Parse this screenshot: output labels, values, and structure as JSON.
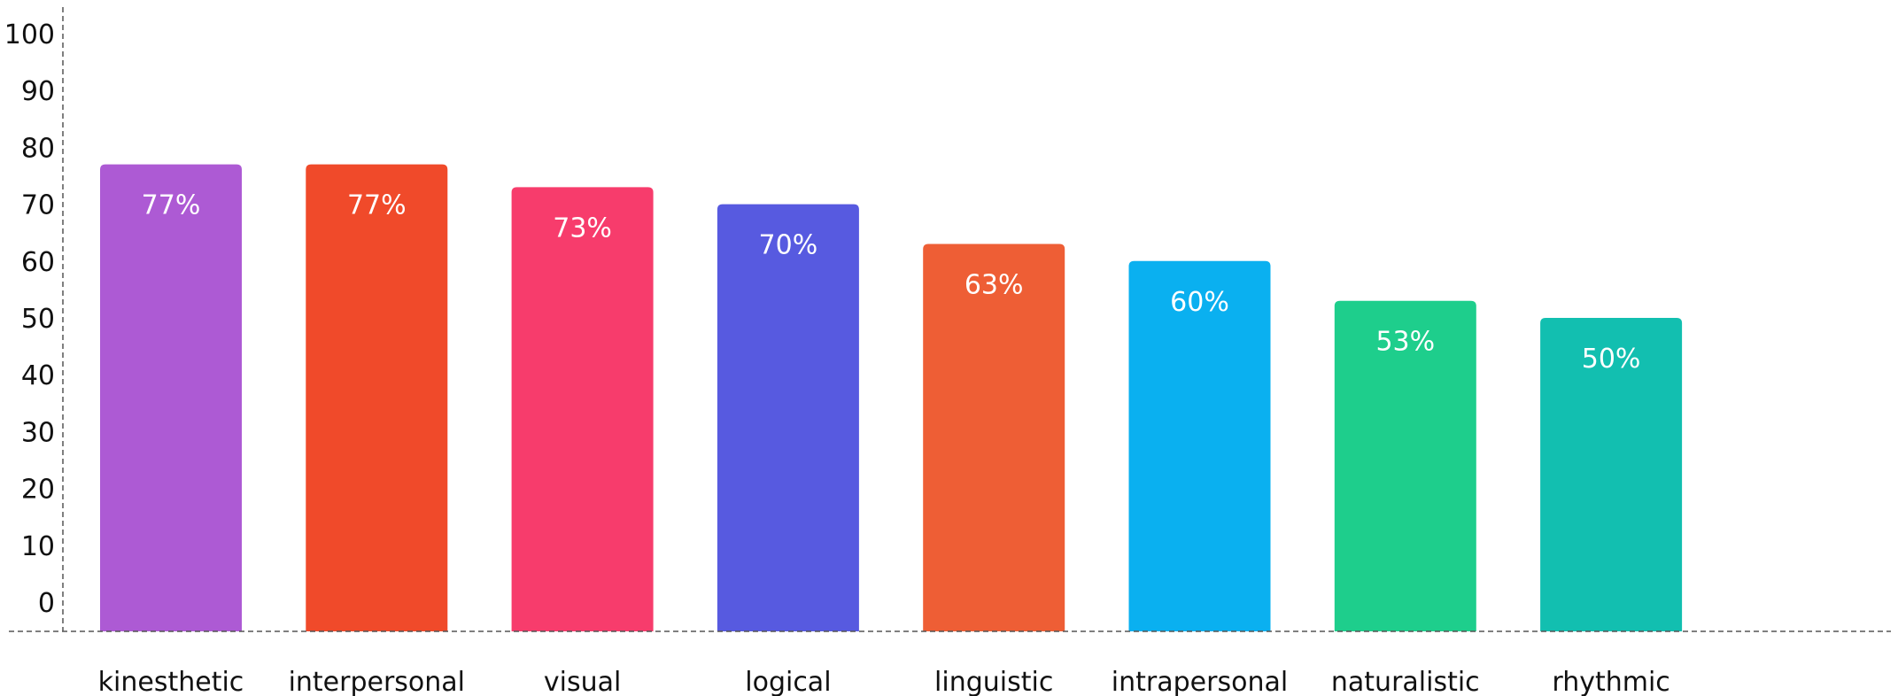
{
  "chart_data": {
    "type": "bar",
    "title": "",
    "xlabel": "",
    "ylabel": "",
    "ylim": [
      0,
      100
    ],
    "yticks": [
      0,
      10,
      20,
      30,
      40,
      50,
      60,
      70,
      80,
      90,
      100
    ],
    "grid": false,
    "legend": "none",
    "categories": [
      "kinesthetic",
      "interpersonal",
      "visual",
      "logical",
      "linguistic",
      "intrapersonal",
      "naturalistic",
      "rhythmic"
    ],
    "values": [
      77,
      77,
      73,
      70,
      63,
      60,
      53,
      50
    ],
    "data_labels": [
      "77%",
      "77%",
      "73%",
      "70%",
      "63%",
      "60%",
      "53%",
      "50%"
    ],
    "colors": [
      "#AD5AD4",
      "#F04A2A",
      "#F73C6C",
      "#575AE0",
      "#EE5E35",
      "#0AB0F0",
      "#1ECE8C",
      "#12BFB0"
    ]
  }
}
